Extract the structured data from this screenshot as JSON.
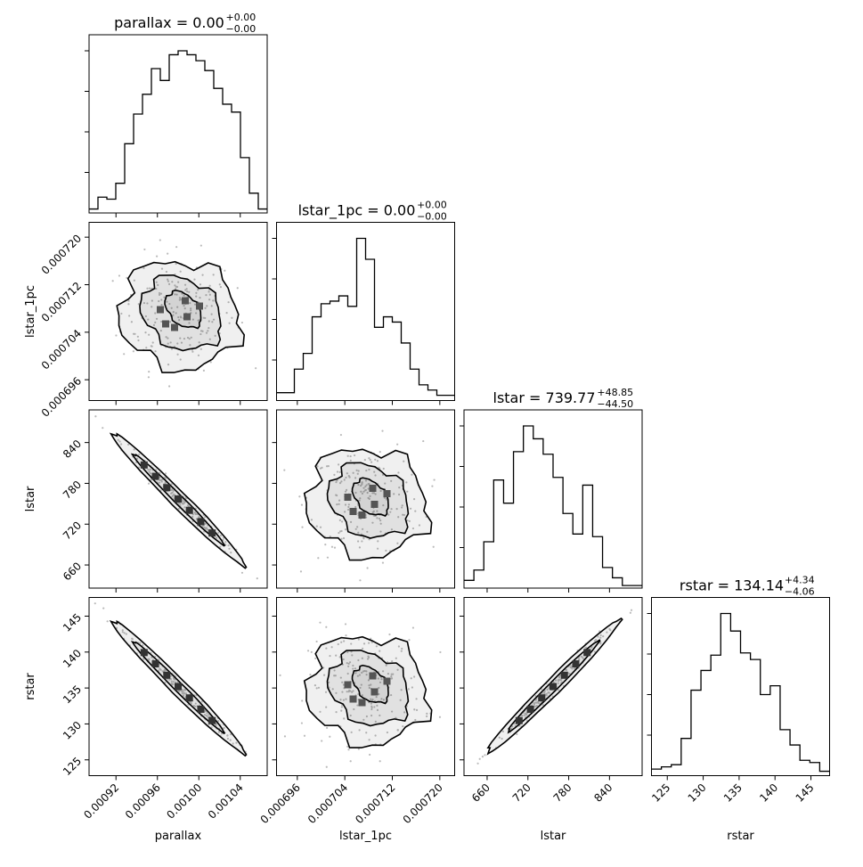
{
  "chart_data": {
    "type": "corner",
    "parameters": [
      "parallax",
      "lstar_1pc",
      "lstar",
      "rstar"
    ],
    "titles": [
      {
        "param": "parallax",
        "median": "0.00",
        "plus": "+0.00",
        "minus": "−0.00"
      },
      {
        "param": "lstar_1pc",
        "median": "0.00",
        "plus": "+0.00",
        "minus": "−0.00"
      },
      {
        "param": "lstar",
        "median": "739.77",
        "plus": "+48.85",
        "minus": "−44.50"
      },
      {
        "param": "rstar",
        "median": "134.14",
        "plus": "+4.34",
        "minus": "−4.06"
      }
    ],
    "axis_labels": {
      "x": [
        "parallax",
        "lstar_1pc",
        "lstar",
        "rstar"
      ],
      "y": [
        "lstar_1pc",
        "lstar",
        "rstar"
      ]
    },
    "ranges": {
      "parallax": [
        0.000894,
        0.001066
      ],
      "lstar_1pc": [
        0.0006925,
        0.0007225
      ],
      "lstar": [
        626,
        888
      ],
      "rstar": [
        122.8,
        147.6
      ]
    },
    "ticks": {
      "parallax": {
        "values": [
          0.00092,
          0.00096,
          0.001,
          0.00104
        ],
        "labels": [
          "0.00092",
          "0.00096",
          "0.00100",
          "0.00104"
        ]
      },
      "lstar_1pc": {
        "values": [
          0.000696,
          0.000704,
          0.000712,
          0.00072
        ],
        "labels": [
          "0.000696",
          "0.000704",
          "0.000712",
          "0.000720"
        ]
      },
      "lstar": {
        "values": [
          660,
          720,
          780,
          840
        ],
        "labels": [
          "660",
          "720",
          "780",
          "840"
        ]
      },
      "rstar": {
        "values": [
          125,
          130,
          135,
          140,
          145
        ],
        "labels": [
          "125",
          "130",
          "135",
          "140",
          "145"
        ]
      }
    },
    "histograms": {
      "parallax": [
        2,
        8,
        7,
        15,
        35,
        50,
        60,
        73,
        67,
        80,
        82,
        80,
        77,
        72,
        63,
        55,
        51,
        28,
        10,
        2
      ],
      "lstar_1pc": [
        3,
        3,
        12,
        18,
        32,
        37,
        38,
        40,
        36,
        62,
        54,
        28,
        32,
        30,
        22,
        12,
        6,
        4,
        2,
        2
      ],
      "lstar": [
        3,
        7,
        18,
        42,
        33,
        53,
        63,
        58,
        52,
        43,
        29,
        21,
        40,
        20,
        8,
        4,
        1,
        1
      ],
      "rstar": [
        3,
        4,
        5,
        17,
        39,
        48,
        55,
        74,
        66,
        56,
        53,
        37,
        41,
        21,
        14,
        7,
        6,
        2
      ]
    },
    "pairs": [
      {
        "x": "parallax",
        "y": "lstar_1pc",
        "correlation": 0.0
      },
      {
        "x": "parallax",
        "y": "lstar",
        "correlation": -0.99
      },
      {
        "x": "lstar_1pc",
        "y": "lstar",
        "correlation": 0.0
      },
      {
        "x": "parallax",
        "y": "rstar",
        "correlation": -0.99
      },
      {
        "x": "lstar_1pc",
        "y": "rstar",
        "correlation": 0.0
      },
      {
        "x": "lstar",
        "y": "rstar",
        "correlation": 0.99
      }
    ]
  }
}
